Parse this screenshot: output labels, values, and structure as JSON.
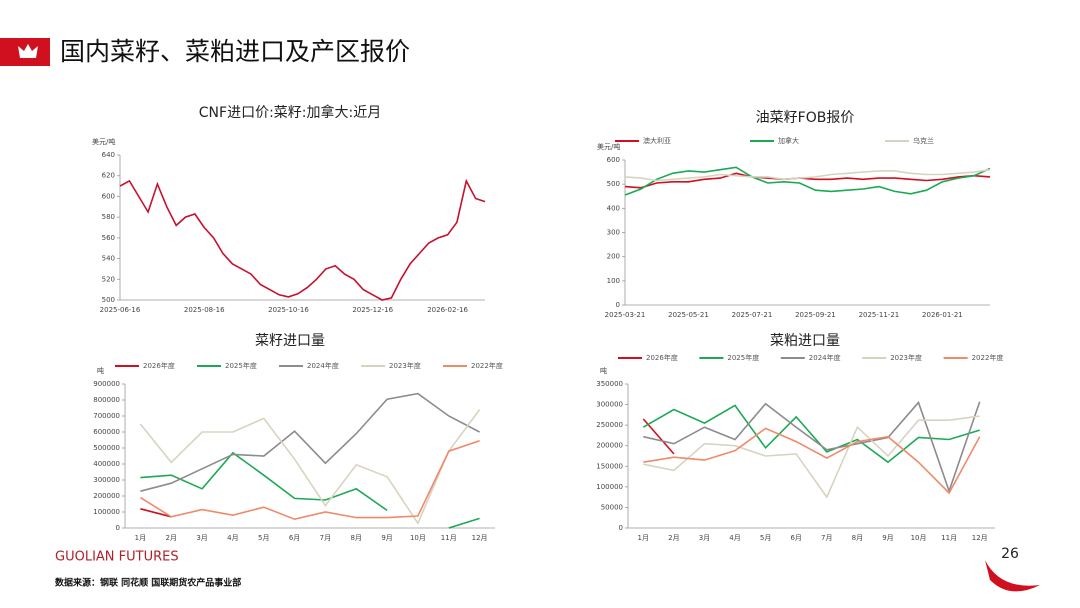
{
  "header": {
    "title": "国内菜籽、菜粕进口及产区报价"
  },
  "chart_data": [
    {
      "type": "line",
      "title": "CNF进口价:菜籽:加拿大:近月",
      "y_label": "美元/吨",
      "categories": [
        "2025-06-16",
        null,
        null,
        null,
        null,
        null,
        null,
        null,
        null,
        "2025-08-16",
        null,
        null,
        null,
        null,
        null,
        null,
        null,
        null,
        "2025-10-16",
        null,
        null,
        null,
        null,
        null,
        null,
        null,
        null,
        "2025-12-16",
        null,
        null,
        null,
        null,
        null,
        null,
        null,
        "2026-02-16",
        null,
        null,
        null,
        null
      ],
      "values": [
        610,
        615,
        600,
        585,
        612,
        590,
        572,
        580,
        583,
        570,
        560,
        545,
        535,
        530,
        525,
        515,
        510,
        505,
        503,
        506,
        512,
        520,
        530,
        533,
        525,
        520,
        510,
        505,
        500,
        502,
        520,
        535,
        545,
        555,
        560,
        563,
        575,
        615,
        598,
        595
      ],
      "color": "#c8102e",
      "ylim": [
        500,
        640
      ],
      "yticks": [
        500,
        520,
        540,
        560,
        580,
        600,
        620,
        640
      ]
    },
    {
      "type": "line",
      "title": "油菜籽FOB报价",
      "y_label": "美元/吨",
      "categories": [
        "2025-03-21",
        null,
        null,
        null,
        "2025-05-21",
        null,
        null,
        null,
        "2025-07-21",
        null,
        null,
        null,
        "2025-09-21",
        null,
        null,
        null,
        "2025-11-21",
        null,
        null,
        null,
        "2026-01-21",
        null,
        null,
        null
      ],
      "series": [
        {
          "name": "澳大利亚",
          "color": "#d0101e",
          "values": [
            490,
            485,
            505,
            510,
            510,
            520,
            525,
            545,
            530,
            525,
            520,
            525,
            520,
            520,
            525,
            520,
            525,
            525,
            520,
            515,
            520,
            530,
            535,
            530
          ]
        },
        {
          "name": "加拿大",
          "color": "#1aaa55",
          "values": [
            455,
            480,
            520,
            545,
            555,
            550,
            560,
            570,
            530,
            505,
            510,
            505,
            475,
            470,
            475,
            480,
            490,
            470,
            460,
            475,
            510,
            525,
            535,
            565
          ]
        },
        {
          "name": "乌克兰",
          "color": "#d8d3c0",
          "values": [
            530,
            525,
            515,
            520,
            525,
            530,
            540,
            535,
            530,
            530,
            520,
            525,
            530,
            540,
            545,
            550,
            555,
            555,
            545,
            540,
            540,
            545,
            550,
            560
          ]
        }
      ],
      "ylim": [
        0,
        600
      ],
      "yticks": [
        0,
        100,
        200,
        300,
        400,
        500,
        600
      ]
    },
    {
      "type": "line",
      "title": "菜籽进口量",
      "y_label": "吨",
      "categories": [
        "1月",
        "2月",
        "3月",
        "4月",
        "5月",
        "6月",
        "7月",
        "8月",
        "9月",
        "10月",
        "11月",
        "12月"
      ],
      "series": [
        {
          "name": "2026年度",
          "color": "#d0101e",
          "values": [
            120000,
            70000,
            null,
            null,
            null,
            null,
            null,
            null,
            null,
            null,
            null,
            null
          ]
        },
        {
          "name": "2025年度",
          "color": "#1aaa55",
          "values": [
            315000,
            330000,
            245000,
            470000,
            330000,
            185000,
            175000,
            245000,
            110000,
            null,
            0,
            60000
          ]
        },
        {
          "name": "2024年度",
          "color": "#8c8c8c",
          "values": [
            230000,
            280000,
            370000,
            460000,
            450000,
            605000,
            405000,
            590000,
            805000,
            840000,
            700000,
            600000
          ]
        },
        {
          "name": "2023年度",
          "color": "#d8d3c0",
          "values": [
            650000,
            410000,
            600000,
            600000,
            685000,
            430000,
            140000,
            395000,
            320000,
            30000,
            480000,
            740000
          ]
        },
        {
          "name": "2022年度",
          "color": "#ef8a6a",
          "values": [
            190000,
            70000,
            115000,
            80000,
            130000,
            55000,
            100000,
            65000,
            65000,
            75000,
            480000,
            545000
          ]
        }
      ],
      "ylim": [
        0,
        900000
      ],
      "yticks": [
        0,
        100000,
        200000,
        300000,
        400000,
        500000,
        600000,
        700000,
        800000,
        900000
      ]
    },
    {
      "type": "line",
      "title": "菜粕进口量",
      "y_label": "吨",
      "categories": [
        "1月",
        "2月",
        "3月",
        "4月",
        "5月",
        "6月",
        "7月",
        "8月",
        "9月",
        "10月",
        "11月",
        "12月"
      ],
      "series": [
        {
          "name": "2026年度",
          "color": "#d0101e",
          "values": [
            265000,
            180000,
            null,
            null,
            null,
            null,
            null,
            null,
            null,
            null,
            null,
            null
          ]
        },
        {
          "name": "2025年度",
          "color": "#1aaa55",
          "values": [
            245000,
            288000,
            255000,
            298000,
            195000,
            270000,
            185000,
            215000,
            160000,
            220000,
            215000,
            238000
          ]
        },
        {
          "name": "2024年度",
          "color": "#8c8c8c",
          "values": [
            222000,
            205000,
            245000,
            215000,
            302000,
            245000,
            190000,
            205000,
            220000,
            305000,
            90000,
            307000
          ]
        },
        {
          "name": "2023年度",
          "color": "#d8d3c0",
          "values": [
            155000,
            140000,
            205000,
            200000,
            175000,
            180000,
            75000,
            245000,
            175000,
            262000,
            262000,
            272000
          ]
        },
        {
          "name": "2022年度",
          "color": "#ef8a6a",
          "values": [
            160000,
            172000,
            165000,
            188000,
            242000,
            210000,
            170000,
            210000,
            222000,
            160000,
            85000,
            222000
          ]
        }
      ],
      "ylim": [
        0,
        350000
      ],
      "yticks": [
        0,
        50000,
        100000,
        150000,
        200000,
        250000,
        300000,
        350000
      ]
    }
  ],
  "footer": {
    "brand": "GUOLIAN FUTURES",
    "source": "数据来源：钢联  同花顺  国联期货农产品事业部",
    "page": 26
  }
}
